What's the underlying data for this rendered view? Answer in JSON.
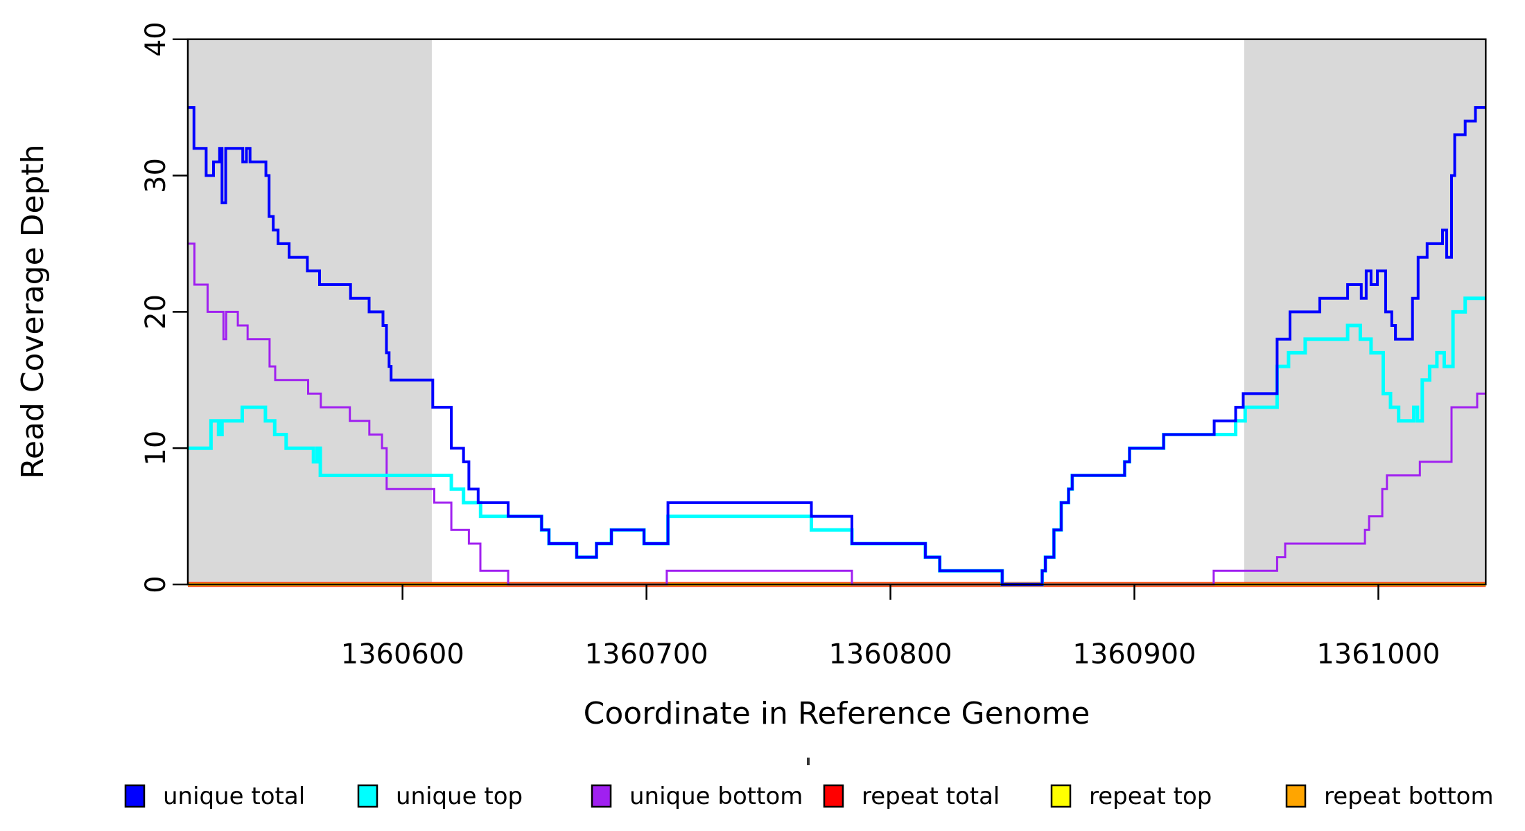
{
  "figure": {
    "xlabel": "Coordinate in Reference Genome",
    "ylabel": "Read Coverage Depth",
    "background": "#ffffff",
    "shading_color": "#d9d9d9",
    "axis_color": "#000000"
  },
  "chart_data": {
    "type": "line",
    "subtype": "step-coverage",
    "title": "",
    "xlabel": "Coordinate in Reference Genome",
    "ylabel": "Read Coverage Depth",
    "xlim": [
      1360512,
      1361044
    ],
    "ylim": [
      0,
      40
    ],
    "x_ticks": [
      1360600,
      1360700,
      1360800,
      1360900,
      1361000
    ],
    "y_ticks": [
      0,
      10,
      20,
      30,
      40
    ],
    "grid": false,
    "legend_position": "bottom",
    "shaded_regions": [
      {
        "x0": 1360512,
        "x1": 1360612,
        "color": "#d9d9d9"
      },
      {
        "x0": 1360945,
        "x1": 1361044,
        "color": "#d9d9d9"
      }
    ],
    "series": [
      {
        "name": "repeat total",
        "color": "#ff0000",
        "width": 7,
        "steps": [
          [
            1360512,
            0
          ]
        ]
      },
      {
        "name": "repeat top",
        "color": "#ffff00",
        "width": 5,
        "steps": [
          [
            1360512,
            0
          ]
        ]
      },
      {
        "name": "repeat bottom",
        "color": "#ffa500",
        "width": 5,
        "steps": [
          [
            1360512,
            0
          ]
        ]
      },
      {
        "name": "unique bottom",
        "color": "#a020f0",
        "width": 3,
        "steps": [
          [
            1360512,
            25
          ],
          [
            1360514.7,
            22
          ],
          [
            1360520.1,
            20
          ],
          [
            1360526.6,
            18
          ],
          [
            1360527.7,
            20
          ],
          [
            1360532.5,
            19
          ],
          [
            1360536.5,
            18
          ],
          [
            1360545.5,
            16
          ],
          [
            1360547.8,
            15
          ],
          [
            1360561.3,
            14
          ],
          [
            1360566.5,
            13
          ],
          [
            1360578.4,
            12
          ],
          [
            1360586.4,
            11
          ],
          [
            1360591.6,
            10
          ],
          [
            1360593.5,
            7
          ],
          [
            1360613,
            6
          ],
          [
            1360620,
            4
          ],
          [
            1360627.2,
            3
          ],
          [
            1360631.9,
            1
          ],
          [
            1360643.3,
            0
          ],
          [
            1360708.3,
            1
          ],
          [
            1360784.2,
            0
          ],
          [
            1360932.5,
            1
          ],
          [
            1360958.5,
            2
          ],
          [
            1360961.8,
            3
          ],
          [
            1360994.5,
            4
          ],
          [
            1360996.2,
            5
          ],
          [
            1361001.6,
            7
          ],
          [
            1361003.5,
            8
          ],
          [
            1361017,
            9
          ],
          [
            1361030,
            13
          ],
          [
            1361040.5,
            14
          ]
        ]
      },
      {
        "name": "unique top",
        "color": "#00ffff",
        "width": 5,
        "steps": [
          [
            1360512,
            10
          ],
          [
            1360521.5,
            12
          ],
          [
            1360524.6,
            11
          ],
          [
            1360526,
            12
          ],
          [
            1360534.3,
            13
          ],
          [
            1360543.8,
            12
          ],
          [
            1360547.6,
            11
          ],
          [
            1360552.3,
            10
          ],
          [
            1360563.5,
            9
          ],
          [
            1360565,
            10
          ],
          [
            1360566.3,
            8
          ],
          [
            1360620,
            7
          ],
          [
            1360625,
            6
          ],
          [
            1360632,
            5
          ],
          [
            1360657,
            4
          ],
          [
            1360660,
            3
          ],
          [
            1360671.4,
            2
          ],
          [
            1360679.5,
            3
          ],
          [
            1360685.6,
            4
          ],
          [
            1360699,
            3
          ],
          [
            1360708.8,
            5
          ],
          [
            1360767.6,
            4
          ],
          [
            1360784.2,
            3
          ],
          [
            1360814.3,
            2
          ],
          [
            1360820.2,
            1
          ],
          [
            1360845.8,
            0
          ],
          [
            1360862.2,
            1
          ],
          [
            1360863.5,
            2
          ],
          [
            1360867,
            4
          ],
          [
            1360870,
            6
          ],
          [
            1360873,
            7
          ],
          [
            1360874.5,
            8
          ],
          [
            1360896,
            9
          ],
          [
            1360898,
            10
          ],
          [
            1360912,
            11
          ],
          [
            1360941.5,
            12
          ],
          [
            1360945.4,
            13
          ],
          [
            1360958.5,
            16
          ],
          [
            1360963.2,
            17
          ],
          [
            1360970,
            18
          ],
          [
            1360987.4,
            19
          ],
          [
            1360992.6,
            18
          ],
          [
            1360997,
            17
          ],
          [
            1361002,
            14
          ],
          [
            1361005,
            13
          ],
          [
            1361008.3,
            12
          ],
          [
            1361014.5,
            13
          ],
          [
            1361016,
            12
          ],
          [
            1361018,
            15
          ],
          [
            1361021,
            16
          ],
          [
            1361024,
            17
          ],
          [
            1361027,
            16
          ],
          [
            1361030.6,
            20
          ],
          [
            1361035.6,
            21
          ]
        ]
      },
      {
        "name": "unique total",
        "color": "#0000ff",
        "width": 4,
        "steps": [
          [
            1360512,
            35
          ],
          [
            1360514.5,
            32
          ],
          [
            1360519.5,
            30
          ],
          [
            1360522.5,
            31
          ],
          [
            1360525,
            32
          ],
          [
            1360526,
            28
          ],
          [
            1360527.5,
            32
          ],
          [
            1360534.5,
            31
          ],
          [
            1360536,
            32
          ],
          [
            1360537.5,
            31
          ],
          [
            1360544,
            30
          ],
          [
            1360545.3,
            27
          ],
          [
            1360547,
            26
          ],
          [
            1360549,
            25
          ],
          [
            1360553.5,
            24
          ],
          [
            1360561,
            23
          ],
          [
            1360566,
            22
          ],
          [
            1360578.7,
            21
          ],
          [
            1360586.3,
            20
          ],
          [
            1360592,
            19
          ],
          [
            1360593.4,
            17
          ],
          [
            1360594.5,
            16
          ],
          [
            1360595.3,
            15
          ],
          [
            1360612.4,
            13
          ],
          [
            1360620,
            10
          ],
          [
            1360625,
            9
          ],
          [
            1360627.2,
            7
          ],
          [
            1360631,
            6
          ],
          [
            1360643.3,
            5
          ],
          [
            1360657,
            4
          ],
          [
            1360660,
            3
          ],
          [
            1360671.4,
            2
          ],
          [
            1360679.5,
            3
          ],
          [
            1360685.6,
            4
          ],
          [
            1360699,
            3
          ],
          [
            1360708.8,
            6
          ],
          [
            1360767.6,
            5
          ],
          [
            1360784.2,
            3
          ],
          [
            1360814.3,
            2
          ],
          [
            1360820.2,
            1
          ],
          [
            1360845.8,
            0
          ],
          [
            1360862.2,
            1
          ],
          [
            1360863.5,
            2
          ],
          [
            1360867,
            4
          ],
          [
            1360870,
            6
          ],
          [
            1360873,
            7
          ],
          [
            1360874.5,
            8
          ],
          [
            1360896,
            9
          ],
          [
            1360898,
            10
          ],
          [
            1360912,
            11
          ],
          [
            1360932.7,
            12
          ],
          [
            1360941.5,
            13
          ],
          [
            1360944.6,
            14
          ],
          [
            1360958.5,
            18
          ],
          [
            1360963.8,
            20
          ],
          [
            1360976,
            21
          ],
          [
            1360987.4,
            22
          ],
          [
            1360993,
            21
          ],
          [
            1360995,
            23
          ],
          [
            1360997,
            22
          ],
          [
            1360999.6,
            23
          ],
          [
            1361003,
            20
          ],
          [
            1361005.5,
            19
          ],
          [
            1361007,
            18
          ],
          [
            1361014,
            21
          ],
          [
            1361016.3,
            24
          ],
          [
            1361020,
            25
          ],
          [
            1361026.3,
            26
          ],
          [
            1361028,
            24
          ],
          [
            1361030,
            30
          ],
          [
            1361031.3,
            33
          ],
          [
            1361035.6,
            34
          ],
          [
            1361039.8,
            35
          ]
        ]
      }
    ],
    "legend": [
      {
        "label": "unique total",
        "color": "#0000ff"
      },
      {
        "label": "unique top",
        "color": "#00ffff"
      },
      {
        "label": "unique bottom",
        "color": "#a020f0"
      },
      {
        "label": "repeat total",
        "color": "#ff0000"
      },
      {
        "label": "repeat top",
        "color": "#ffff00"
      },
      {
        "label": "repeat bottom",
        "color": "#ffa500"
      }
    ],
    "annotations": [
      {
        "type": "stray-mark",
        "x": 1164,
        "y": 1094
      }
    ]
  }
}
